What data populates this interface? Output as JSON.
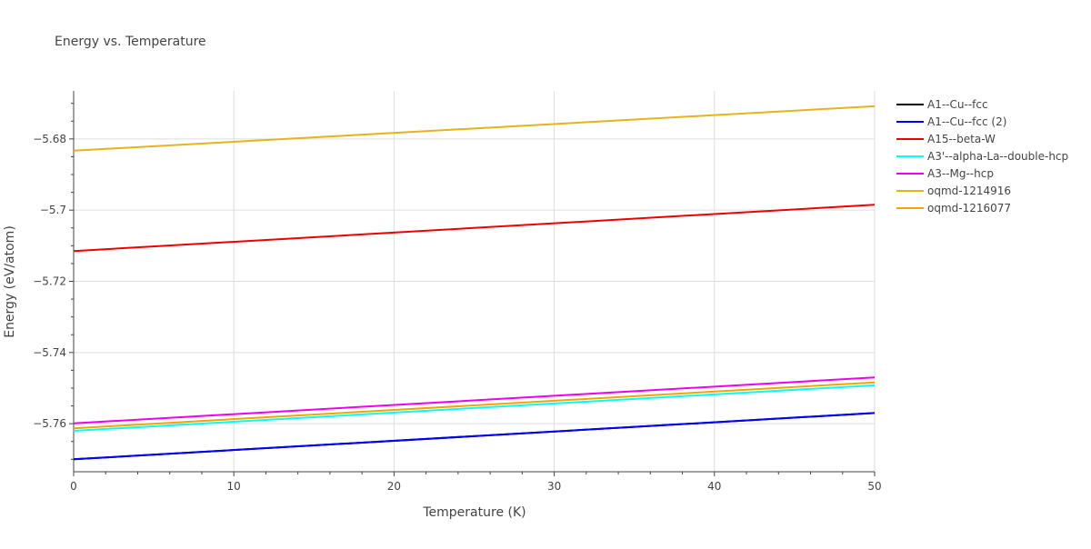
{
  "chart_data": {
    "type": "line",
    "title": "Energy vs. Temperature",
    "xlabel": "Temperature (K)",
    "ylabel": "Energy (eV/atom)",
    "xlim": [
      0,
      50
    ],
    "ylim": [
      -5.7735,
      -5.6665
    ],
    "x_ticks": [
      0,
      10,
      20,
      30,
      40,
      50
    ],
    "x_tick_labels": [
      "0",
      "10",
      "20",
      "30",
      "40",
      "50"
    ],
    "y_ticks": [
      -5.76,
      -5.74,
      -5.72,
      -5.7,
      -5.68
    ],
    "y_tick_labels": [
      "−5.76",
      "−5.74",
      "−5.72",
      "−5.7",
      "−5.68"
    ],
    "grid": true,
    "legend_position": "right",
    "series": [
      {
        "name": "A1--Cu--fcc",
        "color": "#000000",
        "x": [
          0,
          50
        ],
        "y": [
          -5.77,
          -5.757
        ]
      },
      {
        "name": "A1--Cu--fcc (2)",
        "color": "#0000ff",
        "x": [
          0,
          50
        ],
        "y": [
          -5.77,
          -5.757
        ]
      },
      {
        "name": "A15--beta-W",
        "color": "#ee0000",
        "x": [
          0,
          50
        ],
        "y": [
          -5.7115,
          -5.6985
        ]
      },
      {
        "name": "A3'--alpha-La--double-hcp",
        "color": "#00ffff",
        "x": [
          0,
          50
        ],
        "y": [
          -5.762,
          -5.7492
        ]
      },
      {
        "name": "A3--Mg--hcp",
        "color": "#ee00ee",
        "x": [
          0,
          50
        ],
        "y": [
          -5.7599,
          -5.747
        ]
      },
      {
        "name": "oqmd-1214916",
        "color": "#e5b31a",
        "x": [
          0,
          50
        ],
        "y": [
          -5.6833,
          -5.6708
        ]
      },
      {
        "name": "oqmd-1216077",
        "color": "#f0a500",
        "x": [
          0,
          50
        ],
        "y": [
          -5.7613,
          -5.7484
        ]
      }
    ]
  }
}
